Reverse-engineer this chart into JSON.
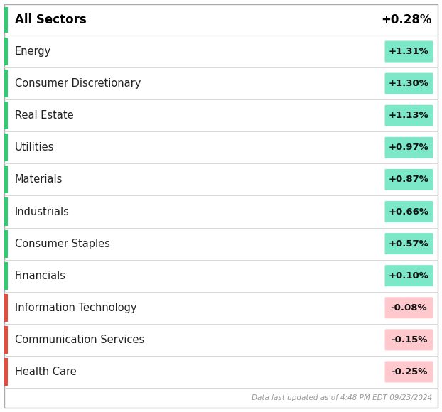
{
  "title": "All Sectors",
  "title_value": "+0.28%",
  "footer": "Data last updated as of 4:48 PM EDT 09/23/2024",
  "sectors": [
    {
      "name": "Energy",
      "value": "+1.31%",
      "positive": true
    },
    {
      "name": "Consumer Discretionary",
      "value": "+1.30%",
      "positive": true
    },
    {
      "name": "Real Estate",
      "value": "+1.13%",
      "positive": true
    },
    {
      "name": "Utilities",
      "value": "+0.97%",
      "positive": true
    },
    {
      "name": "Materials",
      "value": "+0.87%",
      "positive": true
    },
    {
      "name": "Industrials",
      "value": "+0.66%",
      "positive": true
    },
    {
      "name": "Consumer Staples",
      "value": "+0.57%",
      "positive": true
    },
    {
      "name": "Financials",
      "value": "+0.10%",
      "positive": true
    },
    {
      "name": "Information Technology",
      "value": "-0.08%",
      "positive": false
    },
    {
      "name": "Communication Services",
      "value": "-0.15%",
      "positive": false
    },
    {
      "name": "Health Care",
      "value": "-0.25%",
      "positive": false
    }
  ],
  "positive_accent_color": "#2ecc71",
  "negative_accent_color": "#e74c3c",
  "positive_badge_bg": "#7de8c8",
  "negative_badge_bg": "#ffc8cc",
  "badge_text_color": "#111111",
  "row_bg": "#ffffff",
  "header_bg": "#ffffff",
  "title_color": "#000000",
  "sector_label_color": "#222222",
  "footer_color": "#999999",
  "row_divider_color": "#d8d8d8",
  "outer_border_color": "#aaaaaa",
  "fig_bg": "#ffffff"
}
